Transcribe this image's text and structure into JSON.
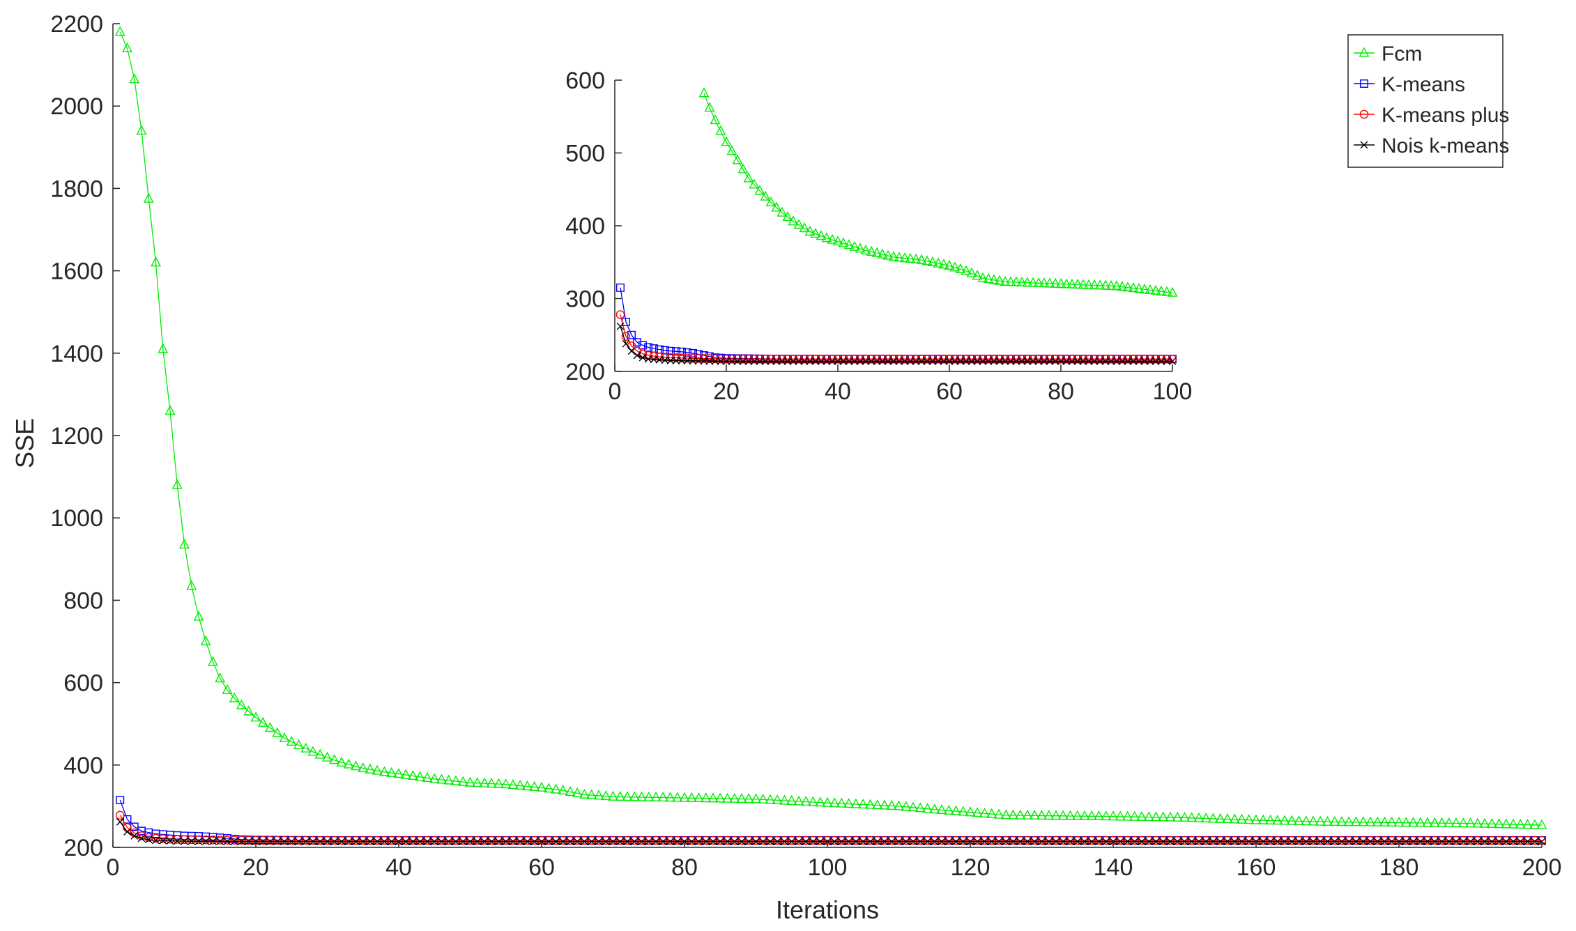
{
  "chart_data": {
    "type": "line",
    "xlabel": "Iterations",
    "ylabel": "SSE",
    "xlim": [
      0,
      200
    ],
    "ylim": [
      200,
      2200
    ],
    "xticks": [
      0,
      20,
      40,
      60,
      80,
      100,
      120,
      140,
      160,
      180,
      200
    ],
    "yticks": [
      200,
      400,
      600,
      800,
      1000,
      1200,
      1400,
      1600,
      1800,
      2000,
      2200
    ],
    "legend": {
      "position": "top-right",
      "entries": [
        {
          "label": "Fcm",
          "color": "#00ee00",
          "marker": "triangle"
        },
        {
          "label": "K-means",
          "color": "#0000ff",
          "marker": "square"
        },
        {
          "label": "K-means plus",
          "color": "#ff0000",
          "marker": "circle"
        },
        {
          "label": "Nois k-means",
          "color": "#000000",
          "marker": "x"
        }
      ]
    },
    "series": [
      {
        "name": "Fcm",
        "color": "#00ee00",
        "marker": "triangle",
        "points": [
          [
            1,
            2180
          ],
          [
            2,
            2140
          ],
          [
            3,
            2065
          ],
          [
            4,
            1940
          ],
          [
            5,
            1775
          ],
          [
            6,
            1620
          ],
          [
            7,
            1410
          ],
          [
            8,
            1260
          ],
          [
            9,
            1080
          ],
          [
            10,
            935
          ],
          [
            11,
            835
          ],
          [
            12,
            760
          ],
          [
            13,
            700
          ],
          [
            14,
            650
          ],
          [
            15,
            610
          ],
          [
            16,
            582
          ],
          [
            17,
            562
          ],
          [
            18,
            545
          ],
          [
            19,
            530
          ],
          [
            20,
            515
          ],
          [
            22,
            490
          ],
          [
            24,
            465
          ],
          [
            26,
            448
          ],
          [
            28,
            432
          ],
          [
            30,
            418
          ],
          [
            32,
            406
          ],
          [
            35,
            392
          ],
          [
            38,
            383
          ],
          [
            41,
            376
          ],
          [
            45,
            366
          ],
          [
            50,
            357
          ],
          [
            55,
            353
          ],
          [
            60,
            345
          ],
          [
            63,
            338
          ],
          [
            66,
            328
          ],
          [
            70,
            323
          ],
          [
            80,
            320
          ],
          [
            90,
            317
          ],
          [
            100,
            308
          ],
          [
            110,
            300
          ],
          [
            115,
            292
          ],
          [
            120,
            285
          ],
          [
            125,
            278
          ],
          [
            140,
            275
          ],
          [
            150,
            272
          ],
          [
            160,
            266
          ],
          [
            170,
            262
          ],
          [
            180,
            260
          ],
          [
            190,
            258
          ],
          [
            200,
            254
          ]
        ]
      },
      {
        "name": "K-means",
        "color": "#0000ff",
        "marker": "square",
        "points": [
          [
            1,
            315
          ],
          [
            2,
            268
          ],
          [
            3,
            250
          ],
          [
            4,
            240
          ],
          [
            5,
            236
          ],
          [
            6,
            233
          ],
          [
            8,
            230
          ],
          [
            10,
            228
          ],
          [
            12,
            227
          ],
          [
            14,
            225
          ],
          [
            16,
            222
          ],
          [
            18,
            219
          ],
          [
            20,
            218
          ],
          [
            30,
            217
          ],
          [
            60,
            217
          ],
          [
            100,
            217
          ],
          [
            200,
            217
          ]
        ]
      },
      {
        "name": "K-means plus",
        "color": "#ff0000",
        "marker": "circle",
        "points": [
          [
            1,
            278
          ],
          [
            2,
            248
          ],
          [
            3,
            235
          ],
          [
            4,
            228
          ],
          [
            5,
            224
          ],
          [
            6,
            222
          ],
          [
            8,
            220
          ],
          [
            10,
            219
          ],
          [
            14,
            218
          ],
          [
            20,
            217
          ],
          [
            60,
            217
          ],
          [
            100,
            217
          ],
          [
            200,
            217
          ]
        ]
      },
      {
        "name": "Nois k-means",
        "color": "#000000",
        "marker": "x",
        "points": [
          [
            1,
            262
          ],
          [
            2,
            238
          ],
          [
            3,
            228
          ],
          [
            4,
            222
          ],
          [
            5,
            219
          ],
          [
            6,
            217
          ],
          [
            8,
            216
          ],
          [
            10,
            215
          ],
          [
            20,
            214
          ],
          [
            60,
            214
          ],
          [
            100,
            214
          ],
          [
            200,
            214
          ]
        ]
      }
    ],
    "inset": {
      "xlim": [
        0,
        100
      ],
      "ylim": [
        200,
        600
      ],
      "xticks": [
        0,
        20,
        40,
        60,
        80,
        100
      ],
      "yticks": [
        200,
        300,
        400,
        500,
        600
      ],
      "series_range_x": [
        0,
        100
      ]
    }
  }
}
